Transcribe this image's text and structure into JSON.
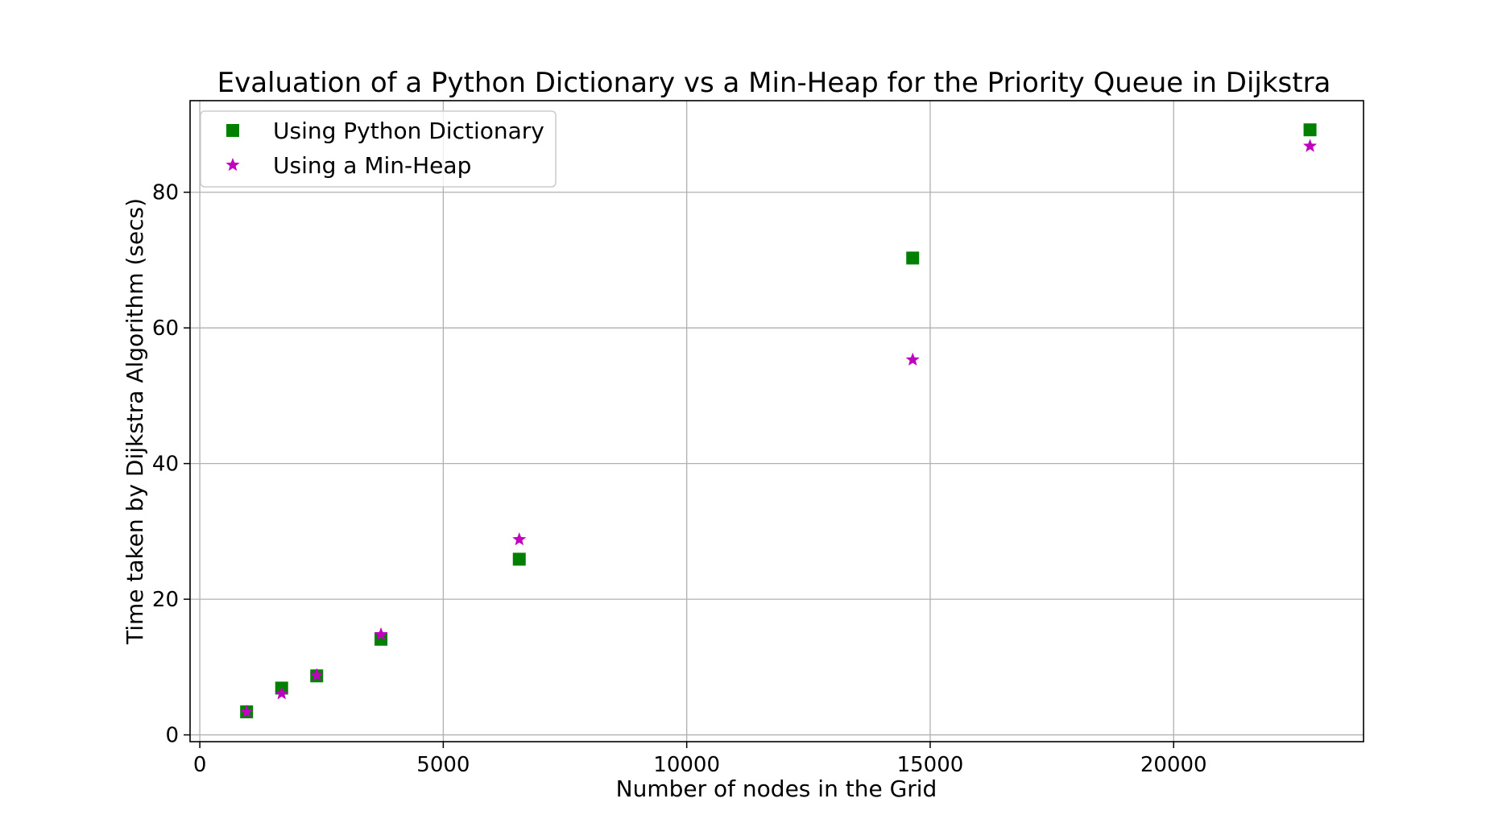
{
  "chart_data": {
    "type": "scatter",
    "title": "Evaluation of a Python Dictionary vs a Min-Heap for the Priority Queue in Dijkstra",
    "xlabel": "Number of nodes in the Grid",
    "ylabel": "Time taken by Dijkstra Algorithm (secs)",
    "xlim": [
      -200,
      23900
    ],
    "ylim": [
      -1,
      93.5
    ],
    "xticks": [
      0,
      5000,
      10000,
      15000,
      20000
    ],
    "xtick_labels": [
      "0",
      "5000",
      "10000",
      "15000",
      "20000"
    ],
    "yticks": [
      0,
      20,
      40,
      60,
      80
    ],
    "ytick_labels": [
      "0",
      "20",
      "40",
      "60",
      "80"
    ],
    "grid": true,
    "legend_position": "top-left",
    "series": [
      {
        "name": "Using Python Dictionary",
        "marker": "square",
        "color": "#008000",
        "points": [
          {
            "x": 961,
            "y": 3.4
          },
          {
            "x": 1681,
            "y": 6.9
          },
          {
            "x": 2401,
            "y": 8.7
          },
          {
            "x": 3721,
            "y": 14.1
          },
          {
            "x": 6561,
            "y": 25.9
          },
          {
            "x": 14641,
            "y": 70.3
          },
          {
            "x": 22801,
            "y": 89.2
          }
        ]
      },
      {
        "name": "Using a Min-Heap",
        "marker": "star",
        "color": "#bf00bf",
        "points": [
          {
            "x": 961,
            "y": 3.4
          },
          {
            "x": 1681,
            "y": 6.1
          },
          {
            "x": 2401,
            "y": 8.8
          },
          {
            "x": 3721,
            "y": 14.8
          },
          {
            "x": 6561,
            "y": 28.8
          },
          {
            "x": 14641,
            "y": 55.3
          },
          {
            "x": 22801,
            "y": 86.8
          }
        ]
      }
    ]
  }
}
